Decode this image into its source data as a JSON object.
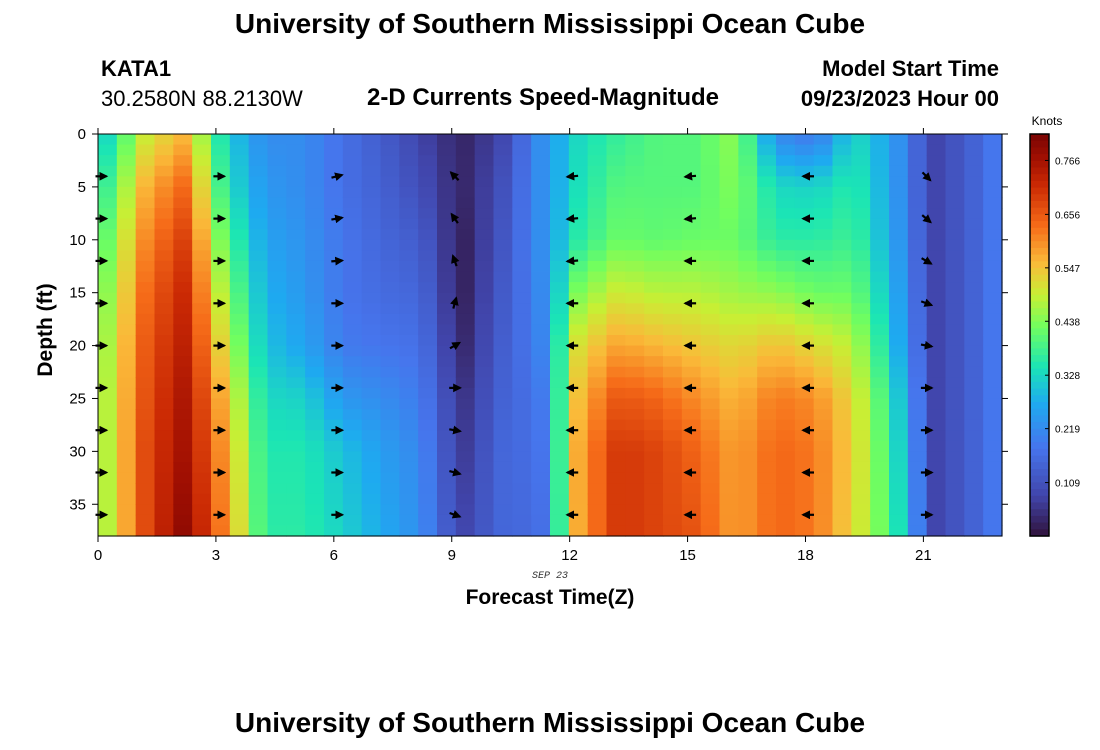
{
  "header": {
    "title": "University of Southern Mississippi Ocean Cube",
    "station": "KATA1",
    "coordinates": "30.2580N  88.2130W",
    "plot_title": "2-D Currents Speed-Magnitude",
    "model_start_label": "Model Start Time",
    "model_start_value": "09/23/2023 Hour 00"
  },
  "footer": {
    "title": "University of Southern Mississippi Ocean Cube"
  },
  "chart_data": {
    "type": "heatmap",
    "title": "2-D Currents Speed-Magnitude",
    "xlabel": "Forecast Time(Z)",
    "ylabel": "Depth (ft)",
    "date_label": "SEP 23",
    "xlim": [
      0,
      23
    ],
    "ylim": [
      38,
      0
    ],
    "x_ticks": [
      0,
      3,
      6,
      9,
      12,
      15,
      18,
      21
    ],
    "y_ticks": [
      0,
      5,
      10,
      15,
      20,
      25,
      30,
      35
    ],
    "colorbar": {
      "label": "Knots",
      "min": 0.0,
      "max": 0.82,
      "ticks": [
        "0.109",
        "0.219",
        "0.328",
        "0.438",
        "0.547",
        "0.656",
        "0.766"
      ]
    },
    "hours": [
      0,
      1,
      2,
      3,
      4,
      5,
      6,
      7,
      8,
      9,
      10,
      11,
      12,
      13,
      14,
      15,
      16,
      17,
      18,
      19,
      20,
      21,
      22,
      23
    ],
    "depth_anchors": [
      0,
      5,
      10,
      15,
      20,
      25,
      30,
      38
    ],
    "speed_profiles": [
      [
        0.33,
        0.38,
        0.42,
        0.45,
        0.47,
        0.48,
        0.48,
        0.48
      ],
      [
        0.5,
        0.57,
        0.61,
        0.64,
        0.66,
        0.67,
        0.68,
        0.68
      ],
      [
        0.56,
        0.64,
        0.69,
        0.72,
        0.74,
        0.76,
        0.77,
        0.8
      ],
      [
        0.32,
        0.35,
        0.4,
        0.45,
        0.5,
        0.55,
        0.58,
        0.6
      ],
      [
        0.22,
        0.24,
        0.26,
        0.28,
        0.3,
        0.33,
        0.35,
        0.36
      ],
      [
        0.22,
        0.22,
        0.23,
        0.24,
        0.26,
        0.32,
        0.35,
        0.36
      ],
      [
        0.17,
        0.17,
        0.18,
        0.18,
        0.19,
        0.24,
        0.3,
        0.32
      ],
      [
        0.13,
        0.14,
        0.15,
        0.16,
        0.18,
        0.22,
        0.25,
        0.27
      ],
      [
        0.08,
        0.1,
        0.13,
        0.15,
        0.17,
        0.19,
        0.21,
        0.22
      ],
      [
        0.03,
        0.03,
        0.02,
        0.02,
        0.03,
        0.05,
        0.06,
        0.08
      ],
      [
        0.08,
        0.1,
        0.11,
        0.12,
        0.13,
        0.14,
        0.15,
        0.15
      ],
      [
        0.22,
        0.22,
        0.22,
        0.21,
        0.2,
        0.18,
        0.17,
        0.16
      ],
      [
        0.33,
        0.34,
        0.36,
        0.44,
        0.52,
        0.56,
        0.58,
        0.58
      ],
      [
        0.37,
        0.4,
        0.42,
        0.5,
        0.58,
        0.66,
        0.7,
        0.7
      ],
      [
        0.4,
        0.4,
        0.41,
        0.48,
        0.56,
        0.64,
        0.68,
        0.68
      ],
      [
        0.4,
        0.4,
        0.42,
        0.48,
        0.54,
        0.6,
        0.64,
        0.66
      ],
      [
        0.45,
        0.44,
        0.42,
        0.46,
        0.52,
        0.56,
        0.58,
        0.58
      ],
      [
        0.22,
        0.33,
        0.36,
        0.45,
        0.55,
        0.62,
        0.64,
        0.64
      ],
      [
        0.18,
        0.32,
        0.36,
        0.42,
        0.52,
        0.6,
        0.62,
        0.62
      ],
      [
        0.33,
        0.36,
        0.38,
        0.42,
        0.48,
        0.52,
        0.53,
        0.52
      ],
      [
        0.25,
        0.25,
        0.26,
        0.28,
        0.3,
        0.34,
        0.36,
        0.38
      ],
      [
        0.08,
        0.08,
        0.08,
        0.08,
        0.08,
        0.08,
        0.08,
        0.08
      ],
      [
        0.14,
        0.14,
        0.14,
        0.14,
        0.14,
        0.14,
        0.14,
        0.14
      ],
      [
        0.22,
        0.22,
        0.22,
        0.22,
        0.22,
        0.22,
        0.22,
        0.22
      ]
    ],
    "vector_hours": [
      0,
      3,
      6,
      9,
      12,
      15,
      18,
      21
    ],
    "vector_depths": [
      4,
      8,
      12,
      16,
      20,
      24,
      28,
      32,
      36
    ],
    "vector_directions_deg": [
      [
        0,
        0,
        0,
        0,
        0,
        0,
        0,
        0,
        0
      ],
      [
        0,
        0,
        0,
        0,
        0,
        0,
        0,
        0,
        0
      ],
      [
        15,
        10,
        5,
        0,
        0,
        0,
        0,
        0,
        0
      ],
      [
        135,
        125,
        110,
        75,
        30,
        0,
        -10,
        -15,
        -20
      ],
      [
        185,
        185,
        185,
        180,
        180,
        180,
        180,
        180,
        180
      ],
      [
        185,
        185,
        180,
        180,
        180,
        180,
        180,
        180,
        180
      ],
      [
        180,
        180,
        180,
        180,
        180,
        180,
        180,
        180,
        180
      ],
      [
        -45,
        -40,
        -30,
        -20,
        -10,
        0,
        0,
        0,
        0
      ]
    ]
  }
}
